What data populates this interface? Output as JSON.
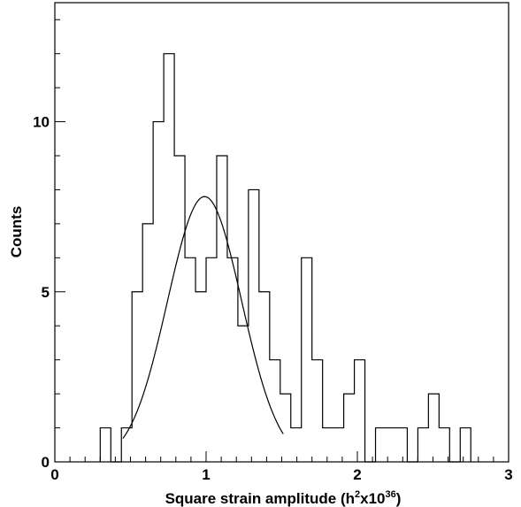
{
  "chart_data": {
    "type": "histogram",
    "title": "",
    "xlabel": {
      "prefix": "Square strain amplitude (h",
      "sup1": "2",
      "mid": "x10",
      "sup2": "36",
      "suffix": ")"
    },
    "ylabel": "Counts",
    "xlim": [
      0,
      3
    ],
    "ylim": [
      0,
      13.5
    ],
    "x_ticks": [
      {
        "value": 0,
        "label": "0"
      },
      {
        "value": 1,
        "label": "1"
      },
      {
        "value": 2,
        "label": "2"
      },
      {
        "value": 3,
        "label": "3"
      }
    ],
    "y_ticks": [
      {
        "value": 0,
        "label": "0"
      },
      {
        "value": 5,
        "label": "5"
      },
      {
        "value": 10,
        "label": "10"
      }
    ],
    "x_minor_step": 0.1,
    "y_minor_step": 1,
    "grid": false,
    "bin_width": 0.07,
    "bins": [
      {
        "x0": 0.3,
        "count": 1
      },
      {
        "x0": 0.37,
        "count": 0
      },
      {
        "x0": 0.44,
        "count": 1
      },
      {
        "x0": 0.51,
        "count": 5
      },
      {
        "x0": 0.58,
        "count": 7
      },
      {
        "x0": 0.65,
        "count": 10
      },
      {
        "x0": 0.72,
        "count": 12
      },
      {
        "x0": 0.79,
        "count": 9
      },
      {
        "x0": 0.86,
        "count": 6
      },
      {
        "x0": 0.93,
        "count": 5
      },
      {
        "x0": 1.0,
        "count": 6
      },
      {
        "x0": 1.07,
        "count": 9
      },
      {
        "x0": 1.14,
        "count": 6
      },
      {
        "x0": 1.21,
        "count": 4
      },
      {
        "x0": 1.28,
        "count": 8
      },
      {
        "x0": 1.35,
        "count": 5
      },
      {
        "x0": 1.42,
        "count": 3
      },
      {
        "x0": 1.49,
        "count": 2
      },
      {
        "x0": 1.56,
        "count": 1
      },
      {
        "x0": 1.63,
        "count": 6
      },
      {
        "x0": 1.7,
        "count": 3
      },
      {
        "x0": 1.77,
        "count": 1
      },
      {
        "x0": 1.84,
        "count": 1
      },
      {
        "x0": 1.91,
        "count": 2
      },
      {
        "x0": 1.98,
        "count": 3
      },
      {
        "x0": 2.05,
        "count": 0
      },
      {
        "x0": 2.12,
        "count": 1
      },
      {
        "x0": 2.19,
        "count": 1
      },
      {
        "x0": 2.26,
        "count": 1
      },
      {
        "x0": 2.33,
        "count": 0
      },
      {
        "x0": 2.4,
        "count": 1
      },
      {
        "x0": 2.47,
        "count": 2
      },
      {
        "x0": 2.54,
        "count": 1
      },
      {
        "x0": 2.61,
        "count": 0
      },
      {
        "x0": 2.68,
        "count": 1
      }
    ],
    "fit_curve": {
      "type": "gaussian",
      "amplitude": 7.8,
      "mean": 0.99,
      "sigma": 0.245,
      "x_range": [
        0.45,
        1.51
      ]
    }
  }
}
